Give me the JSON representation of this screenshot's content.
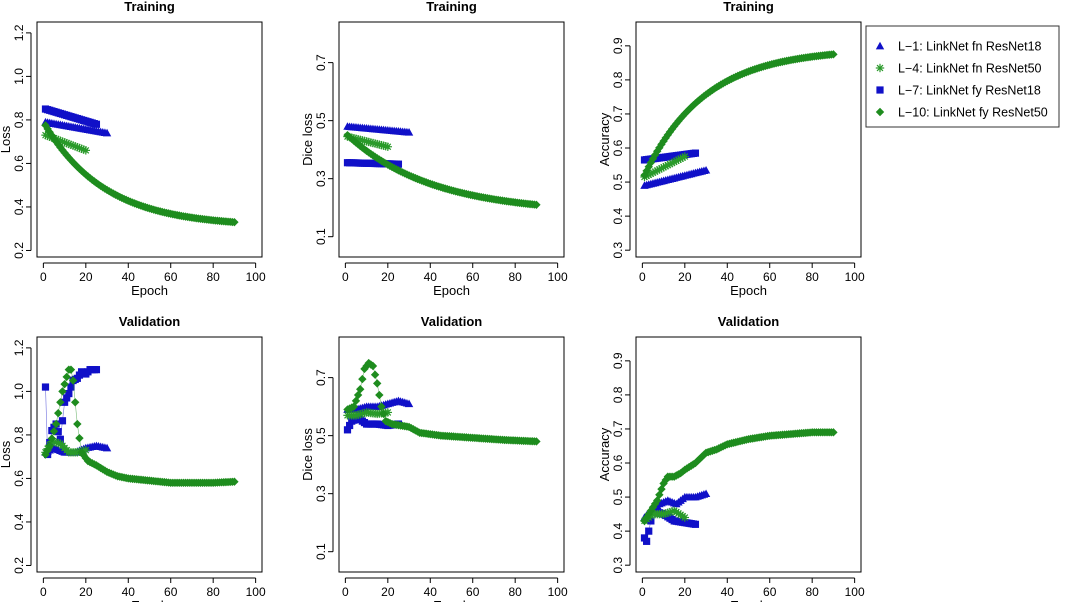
{
  "legend": [
    {
      "key": "L1",
      "marker": "triangle",
      "color": "#1010c8",
      "label": "L−1: LinkNet fn ResNet18"
    },
    {
      "key": "L4",
      "marker": "asterisk",
      "color": "#2a9a2a",
      "label": "L−4: LinkNet fn ResNet50"
    },
    {
      "key": "L7",
      "marker": "square",
      "color": "#1010c8",
      "label": "L−7: LinkNet fy ResNet18"
    },
    {
      "key": "L10",
      "marker": "diamond",
      "color": "#1e8c1e",
      "label": "L−10: LinkNet fy ResNet50"
    }
  ],
  "chart_data": [
    {
      "id": "train-loss",
      "type": "scatter",
      "title": "Training",
      "xlabel": "Epoch",
      "ylabel": "Loss",
      "xlim": [
        -3,
        103
      ],
      "ylim": [
        0.17,
        1.25
      ],
      "xticks": [
        0,
        20,
        40,
        60,
        80,
        100
      ],
      "yticks": [
        0.2,
        0.4,
        0.6,
        0.8,
        1.0,
        1.2
      ],
      "ytick_labels": [
        "0.2",
        "0.4",
        "0.6",
        "0.8",
        "1.0",
        "1.2"
      ],
      "series": [
        {
          "key": "L1",
          "x": [
            1,
            30
          ],
          "y": [
            0.79,
            0.74
          ]
        },
        {
          "key": "L7",
          "x": [
            1,
            25
          ],
          "y": [
            0.85,
            0.78
          ]
        },
        {
          "key": "L4",
          "x": [
            1,
            20
          ],
          "y": [
            0.73,
            0.66
          ]
        },
        {
          "key": "L10",
          "x": [
            1,
            90
          ],
          "y": [
            0.775,
            0.33
          ],
          "curve": "exp",
          "k": 0.035
        }
      ]
    },
    {
      "id": "train-dice",
      "type": "scatter",
      "title": "Training",
      "xlabel": "Epoch",
      "ylabel": "Dice loss",
      "xlim": [
        -3,
        103
      ],
      "ylim": [
        0.03,
        0.84
      ],
      "xticks": [
        0,
        20,
        40,
        60,
        80,
        100
      ],
      "yticks": [
        0.1,
        0.3,
        0.5,
        0.7
      ],
      "ytick_labels": [
        "0.1",
        "0.3",
        "0.5",
        "0.7"
      ],
      "series": [
        {
          "key": "L1",
          "x": [
            1,
            30
          ],
          "y": [
            0.48,
            0.46
          ]
        },
        {
          "key": "L7",
          "x": [
            1,
            25
          ],
          "y": [
            0.355,
            0.35
          ]
        },
        {
          "key": "L4",
          "x": [
            1,
            20
          ],
          "y": [
            0.445,
            0.41
          ]
        },
        {
          "key": "L10",
          "x": [
            1,
            90
          ],
          "y": [
            0.45,
            0.21
          ],
          "curve": "exp",
          "k": 0.025
        }
      ]
    },
    {
      "id": "train-acc",
      "type": "scatter",
      "title": "Training",
      "xlabel": "Epoch",
      "ylabel": "Accuracy",
      "xlim": [
        -3,
        103
      ],
      "ylim": [
        0.28,
        0.97
      ],
      "xticks": [
        0,
        20,
        40,
        60,
        80,
        100
      ],
      "yticks": [
        0.3,
        0.4,
        0.5,
        0.6,
        0.7,
        0.8,
        0.9
      ],
      "ytick_labels": [
        "0.3",
        "0.4",
        "0.5",
        "0.6",
        "0.7",
        "0.8",
        "0.9"
      ],
      "series": [
        {
          "key": "L1",
          "x": [
            1,
            30
          ],
          "y": [
            0.49,
            0.535
          ]
        },
        {
          "key": "L7",
          "x": [
            1,
            25
          ],
          "y": [
            0.565,
            0.585
          ]
        },
        {
          "key": "L4",
          "x": [
            1,
            20
          ],
          "y": [
            0.515,
            0.575
          ]
        },
        {
          "key": "L10",
          "x": [
            1,
            90
          ],
          "y": [
            0.52,
            0.875
          ],
          "curve": "exp",
          "k": 0.035
        }
      ]
    },
    {
      "id": "val-loss",
      "type": "scatter",
      "title": "Validation",
      "xlabel": "Epoch",
      "ylabel": "Loss",
      "xlim": [
        -3,
        103
      ],
      "ylim": [
        0.17,
        1.25
      ],
      "xticks": [
        0,
        20,
        40,
        60,
        80,
        100
      ],
      "yticks": [
        0.2,
        0.4,
        0.6,
        0.8,
        1.0,
        1.2
      ],
      "ytick_labels": [
        "0.2",
        "0.4",
        "0.6",
        "0.8",
        "1.0",
        "1.2"
      ],
      "series": [
        {
          "key": "L1",
          "x": [
            1,
            5,
            10,
            15,
            20,
            25,
            30
          ],
          "y": [
            0.72,
            0.74,
            0.72,
            0.72,
            0.74,
            0.75,
            0.74
          ]
        },
        {
          "key": "L7",
          "x": [
            1,
            2,
            4,
            6,
            8,
            10,
            12,
            14,
            16,
            18,
            20,
            22,
            24,
            25
          ],
          "y": [
            1.02,
            0.71,
            0.82,
            0.85,
            0.78,
            0.95,
            0.99,
            1.05,
            1.06,
            1.09,
            1.08,
            1.1,
            1.1,
            1.1
          ]
        },
        {
          "key": "L4",
          "x": [
            1,
            4,
            8,
            12,
            16,
            20
          ],
          "y": [
            0.72,
            0.77,
            0.76,
            0.72,
            0.72,
            0.73
          ]
        },
        {
          "key": "L10",
          "x": [
            1,
            3,
            6,
            9,
            12,
            13,
            14,
            16,
            18,
            21,
            25,
            30,
            35,
            40,
            50,
            60,
            70,
            80,
            90
          ],
          "y": [
            0.71,
            0.75,
            0.85,
            1.0,
            1.1,
            1.1,
            1.05,
            0.85,
            0.72,
            0.68,
            0.66,
            0.63,
            0.61,
            0.6,
            0.59,
            0.58,
            0.58,
            0.58,
            0.585
          ]
        }
      ]
    },
    {
      "id": "val-dice",
      "type": "scatter",
      "title": "Validation",
      "xlabel": "Epoch",
      "ylabel": "Dice loss",
      "xlim": [
        -3,
        103
      ],
      "ylim": [
        0.03,
        0.84
      ],
      "xticks": [
        0,
        20,
        40,
        60,
        80,
        100
      ],
      "yticks": [
        0.1,
        0.3,
        0.5,
        0.7
      ],
      "ytick_labels": [
        "0.1",
        "0.3",
        "0.5",
        "0.7"
      ],
      "series": [
        {
          "key": "L1",
          "x": [
            1,
            5,
            10,
            15,
            20,
            25,
            30
          ],
          "y": [
            0.59,
            0.59,
            0.6,
            0.6,
            0.61,
            0.62,
            0.61
          ]
        },
        {
          "key": "L7",
          "x": [
            1,
            3,
            6,
            10,
            15,
            20,
            25
          ],
          "y": [
            0.52,
            0.55,
            0.56,
            0.54,
            0.54,
            0.535,
            0.54
          ]
        },
        {
          "key": "L4",
          "x": [
            1,
            5,
            10,
            15,
            20
          ],
          "y": [
            0.57,
            0.57,
            0.58,
            0.575,
            0.58
          ]
        },
        {
          "key": "L10",
          "x": [
            1,
            4,
            7,
            9,
            11,
            13,
            15,
            17,
            19,
            22,
            26,
            30,
            35,
            45,
            55,
            65,
            75,
            90
          ],
          "y": [
            0.59,
            0.6,
            0.66,
            0.73,
            0.75,
            0.74,
            0.68,
            0.6,
            0.55,
            0.54,
            0.535,
            0.53,
            0.51,
            0.5,
            0.495,
            0.49,
            0.485,
            0.48
          ]
        }
      ]
    },
    {
      "id": "val-acc",
      "type": "scatter",
      "title": "Validation",
      "xlabel": "Epoch",
      "ylabel": "Accuracy",
      "xlim": [
        -3,
        103
      ],
      "ylim": [
        0.28,
        0.97
      ],
      "xticks": [
        0,
        20,
        40,
        60,
        80,
        100
      ],
      "yticks": [
        0.3,
        0.4,
        0.5,
        0.6,
        0.7,
        0.8,
        0.9
      ],
      "ytick_labels": [
        "0.3",
        "0.4",
        "0.5",
        "0.6",
        "0.7",
        "0.8",
        "0.9"
      ],
      "series": [
        {
          "key": "L1",
          "x": [
            1,
            4,
            8,
            12,
            16,
            20,
            25,
            30
          ],
          "y": [
            0.44,
            0.46,
            0.48,
            0.49,
            0.48,
            0.5,
            0.5,
            0.51
          ]
        },
        {
          "key": "L7",
          "x": [
            1,
            2,
            5,
            10,
            15,
            20,
            25
          ],
          "y": [
            0.38,
            0.37,
            0.46,
            0.45,
            0.43,
            0.425,
            0.42
          ]
        },
        {
          "key": "L4",
          "x": [
            1,
            5,
            10,
            15,
            20
          ],
          "y": [
            0.43,
            0.45,
            0.45,
            0.46,
            0.44
          ]
        },
        {
          "key": "L10",
          "x": [
            1,
            4,
            7,
            10,
            12,
            15,
            18,
            20,
            25,
            30,
            35,
            40,
            50,
            60,
            70,
            80,
            90
          ],
          "y": [
            0.43,
            0.46,
            0.49,
            0.54,
            0.56,
            0.56,
            0.57,
            0.58,
            0.6,
            0.63,
            0.64,
            0.655,
            0.67,
            0.68,
            0.685,
            0.69,
            0.69
          ]
        }
      ]
    }
  ]
}
